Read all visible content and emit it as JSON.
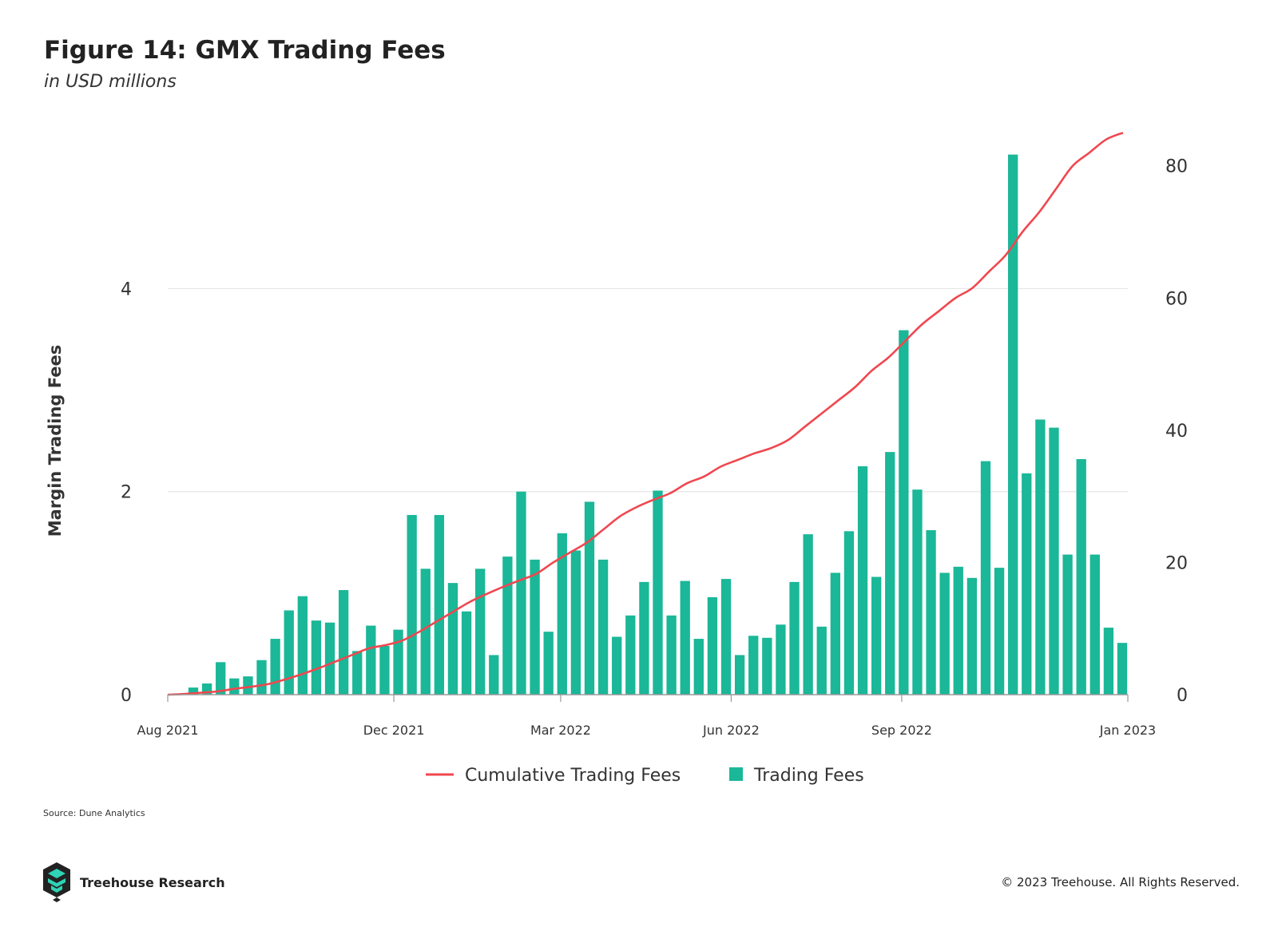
{
  "header": {
    "title": "Figure 14: GMX Trading Fees",
    "subtitle": "in USD millions"
  },
  "footer": {
    "source": "Source: Dune Analytics",
    "brand": "Treehouse Research",
    "copyright": "© 2023 Treehouse. All Rights Reserved."
  },
  "colors": {
    "bar": "#1ab798",
    "line": "#f0474f",
    "grid": "#e6e6e6",
    "axis_text": "#333333"
  },
  "chart_data": {
    "type": "bar",
    "ylabel": "Margin Trading Fees",
    "ylim_left": [
      0,
      5.6
    ],
    "yticks_left": [
      0,
      2,
      4
    ],
    "ylim_right": [
      0,
      86
    ],
    "yticks_right": [
      0,
      20,
      40,
      60,
      80
    ],
    "x_range": [
      "2021-08-01",
      "2023-01-01"
    ],
    "x_ticks": [
      "Aug 2021",
      "Dec 2021",
      "Mar 2022",
      "Jun 2022",
      "Sep 2022",
      "Jan 2023"
    ],
    "grid": "horizontal",
    "legend_position": "bottom-center",
    "series": [
      {
        "name": "Trading Fees",
        "type": "bar",
        "axis": "left",
        "values": [
          0.07,
          0.11,
          0.32,
          0.16,
          0.18,
          0.34,
          0.55,
          0.83,
          0.97,
          0.73,
          0.71,
          1.03,
          0.43,
          0.68,
          0.48,
          0.64,
          1.77,
          1.24,
          1.77,
          1.1,
          0.82,
          1.24,
          0.39,
          1.36,
          2.0,
          1.33,
          0.62,
          1.59,
          1.42,
          1.9,
          1.33,
          0.57,
          0.78,
          1.11,
          2.01,
          0.78,
          1.12,
          0.55,
          0.96,
          1.14,
          0.39,
          0.58,
          0.56,
          0.69,
          1.11,
          1.58,
          0.67,
          1.2,
          1.61,
          2.25,
          1.16,
          2.39,
          3.59,
          2.02,
          1.62,
          1.2,
          1.26,
          1.15,
          2.3,
          1.25,
          5.32,
          2.18,
          2.71,
          2.63,
          1.38,
          2.32,
          1.38,
          0.66,
          0.51
        ]
      },
      {
        "name": "Cumulative Trading Fees",
        "type": "line",
        "axis": "right",
        "values": [
          0,
          0.1,
          0.3,
          0.5,
          0.9,
          1.2,
          1.6,
          2.3,
          3.1,
          4.0,
          5.0,
          6.0,
          7.0,
          7.5,
          8.2,
          9.5,
          11.0,
          12.5,
          14.0,
          15.2,
          16.3,
          17.3,
          18.3,
          20.0,
          21.5,
          23.0,
          25.0,
          27.0,
          28.4,
          29.5,
          30.5,
          32.0,
          33.0,
          34.5,
          35.5,
          36.5,
          37.3,
          38.5,
          40.5,
          42.5,
          44.5,
          46.5,
          49.0,
          51.0,
          53.5,
          56.0,
          58.0,
          60.0,
          61.5,
          64.0,
          66.5,
          70.0,
          73.0,
          76.5,
          80.0,
          82.0,
          84.0,
          85.0
        ]
      }
    ]
  }
}
